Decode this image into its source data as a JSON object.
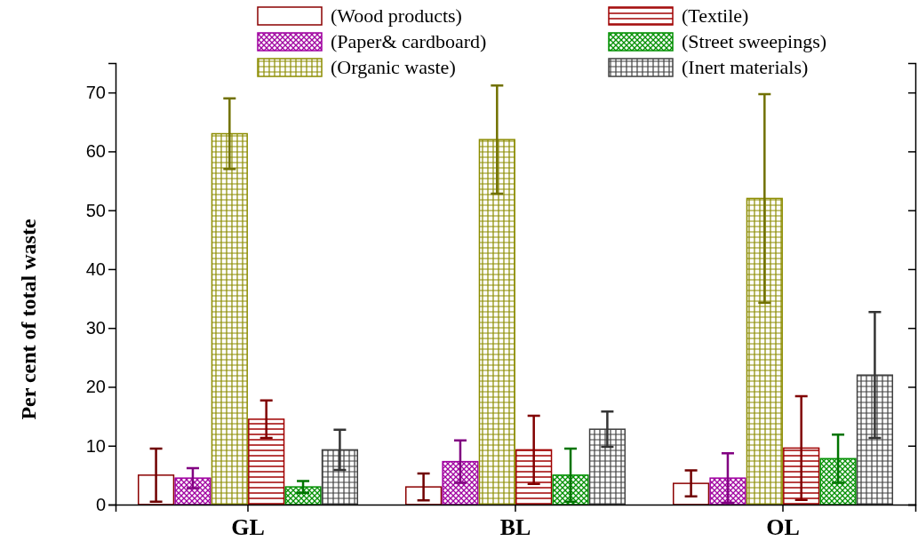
{
  "chart_data": {
    "type": "bar",
    "ylabel": "Per cent of total waste",
    "categories": [
      "GL",
      "BL",
      "OL"
    ],
    "series": [
      {
        "name": "(Wood products)",
        "color": "#8b0000",
        "values": [
          5,
          3,
          3.6
        ],
        "errors": [
          4.5,
          2.3,
          2.2
        ]
      },
      {
        "name": "(Paper& cardboard)",
        "color": "#a000a0",
        "values": [
          4.5,
          7.3,
          4.5
        ],
        "errors": [
          1.7,
          3.6,
          4.2
        ]
      },
      {
        "name": "(Organic waste)",
        "color": "#8c8c00",
        "values": [
          63,
          62,
          52
        ],
        "errors": [
          6,
          9.2,
          17.7
        ]
      },
      {
        "name": "(Textile)",
        "color": "#a00000",
        "values": [
          14.5,
          9.3,
          9.6
        ],
        "errors": [
          3.2,
          5.8,
          8.8
        ]
      },
      {
        "name": "(Street sweepings)",
        "color": "#009000",
        "values": [
          3,
          5,
          7.8
        ],
        "errors": [
          1,
          4.5,
          4.1
        ]
      },
      {
        "name": "(Inert  materials)",
        "color": "#404040",
        "values": [
          9.3,
          12.8,
          22
        ],
        "errors": [
          3.4,
          3,
          10.7
        ]
      }
    ],
    "ylim": [
      0,
      75
    ],
    "yticks": [
      0,
      10,
      20,
      30,
      40,
      50,
      60,
      70
    ],
    "legend": "top",
    "grid": false
  }
}
